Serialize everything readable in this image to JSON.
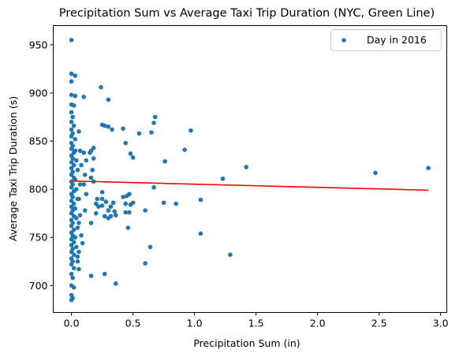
{
  "chart_data": {
    "type": "scatter",
    "title": "Precipitation Sum vs Average Taxi Trip Duration (NYC, Green Line)",
    "xlabel": "Precipitation Sum (in)",
    "ylabel": "Average Taxi Trip Duration (s)",
    "xlim": [
      -0.148,
      3.05
    ],
    "ylim": [
      672,
      970
    ],
    "xticks": [
      0.0,
      0.5,
      1.0,
      1.5,
      2.0,
      2.5,
      3.0
    ],
    "xtick_labels": [
      "0.0",
      "0.5",
      "1.0",
      "1.5",
      "2.0",
      "2.5",
      "3.0"
    ],
    "yticks": [
      700,
      750,
      800,
      850,
      900,
      950
    ],
    "ytick_labels": [
      "700",
      "750",
      "800",
      "850",
      "900",
      "950"
    ],
    "grid": false,
    "legend": {
      "position": "top-right",
      "entries": [
        "Day in 2016"
      ]
    },
    "colors": {
      "points": "#1f77b4",
      "fit_line": "#ff0000"
    },
    "fit_line": {
      "x": [
        0.0,
        2.9
      ],
      "y": [
        808.6,
        799.0
      ]
    },
    "series": [
      {
        "name": "Day in 2016",
        "points": [
          [
            0.0,
            955
          ],
          [
            0.0,
            920
          ],
          [
            0.03,
            918
          ],
          [
            0.0,
            912
          ],
          [
            0.0,
            898
          ],
          [
            0.03,
            897
          ],
          [
            0.1,
            896
          ],
          [
            0.0,
            888
          ],
          [
            0.02,
            887
          ],
          [
            0.0,
            880
          ],
          [
            0.01,
            875
          ],
          [
            0.0,
            870
          ],
          [
            0.02,
            866
          ],
          [
            0.0,
            862
          ],
          [
            0.01,
            858
          ],
          [
            0.0,
            855
          ],
          [
            0.03,
            852
          ],
          [
            0.0,
            848
          ],
          [
            0.01,
            845
          ],
          [
            0.0,
            842
          ],
          [
            0.02,
            838
          ],
          [
            0.0,
            835
          ],
          [
            0.01,
            832
          ],
          [
            0.0,
            828
          ],
          [
            0.02,
            825
          ],
          [
            0.0,
            822
          ],
          [
            0.01,
            818
          ],
          [
            0.0,
            815
          ],
          [
            0.02,
            812
          ],
          [
            0.0,
            808
          ],
          [
            0.01,
            805
          ],
          [
            0.0,
            802
          ],
          [
            0.02,
            798
          ],
          [
            0.0,
            795
          ],
          [
            0.01,
            792
          ],
          [
            0.0,
            788
          ],
          [
            0.02,
            785
          ],
          [
            0.0,
            782
          ],
          [
            0.01,
            778
          ],
          [
            0.0,
            775
          ],
          [
            0.02,
            772
          ],
          [
            0.0,
            768
          ],
          [
            0.01,
            765
          ],
          [
            0.0,
            762
          ],
          [
            0.02,
            758
          ],
          [
            0.0,
            755
          ],
          [
            0.01,
            752
          ],
          [
            0.0,
            748
          ],
          [
            0.02,
            745
          ],
          [
            0.0,
            742
          ],
          [
            0.01,
            738
          ],
          [
            0.0,
            735
          ],
          [
            0.02,
            732
          ],
          [
            0.0,
            728
          ],
          [
            0.01,
            725
          ],
          [
            0.0,
            722
          ],
          [
            0.02,
            718
          ],
          [
            0.0,
            712
          ],
          [
            0.01,
            708
          ],
          [
            0.0,
            700
          ],
          [
            0.02,
            698
          ],
          [
            0.0,
            690
          ],
          [
            0.01,
            687
          ],
          [
            0.0,
            685
          ],
          [
            0.03,
            840
          ],
          [
            0.04,
            830
          ],
          [
            0.05,
            820
          ],
          [
            0.03,
            810
          ],
          [
            0.04,
            800
          ],
          [
            0.05,
            790
          ],
          [
            0.03,
            780
          ],
          [
            0.04,
            770
          ],
          [
            0.05,
            760
          ],
          [
            0.03,
            750
          ],
          [
            0.04,
            740
          ],
          [
            0.05,
            730
          ],
          [
            0.06,
            860
          ],
          [
            0.07,
            840
          ],
          [
            0.08,
            825
          ],
          [
            0.07,
            805
          ],
          [
            0.06,
            790
          ],
          [
            0.07,
            773
          ],
          [
            0.06,
            765
          ],
          [
            0.08,
            752
          ],
          [
            0.09,
            744
          ],
          [
            0.06,
            735
          ],
          [
            0.05,
            725
          ],
          [
            0.06,
            717
          ],
          [
            0.1,
            838
          ],
          [
            0.12,
            830
          ],
          [
            0.11,
            815
          ],
          [
            0.1,
            805
          ],
          [
            0.12,
            795
          ],
          [
            0.11,
            778
          ],
          [
            0.15,
            838
          ],
          [
            0.16,
            840
          ],
          [
            0.18,
            843
          ],
          [
            0.18,
            832
          ],
          [
            0.17,
            820
          ],
          [
            0.16,
            812
          ],
          [
            0.18,
            808
          ],
          [
            0.2,
            785
          ],
          [
            0.22,
            782
          ],
          [
            0.21,
            790
          ],
          [
            0.2,
            775
          ],
          [
            0.16,
            765
          ],
          [
            0.16,
            710
          ],
          [
            0.24,
            906
          ],
          [
            0.25,
            867
          ],
          [
            0.27,
            866
          ],
          [
            0.3,
            865
          ],
          [
            0.3,
            893
          ],
          [
            0.33,
            862
          ],
          [
            0.25,
            797
          ],
          [
            0.25,
            790
          ],
          [
            0.28,
            787
          ],
          [
            0.25,
            783
          ],
          [
            0.3,
            778
          ],
          [
            0.32,
            782
          ],
          [
            0.34,
            786
          ],
          [
            0.27,
            772
          ],
          [
            0.3,
            770
          ],
          [
            0.32,
            772
          ],
          [
            0.35,
            777
          ],
          [
            0.36,
            773
          ],
          [
            0.36,
            702
          ],
          [
            0.27,
            712
          ],
          [
            0.42,
            863
          ],
          [
            0.44,
            848
          ],
          [
            0.48,
            837
          ],
          [
            0.5,
            833
          ],
          [
            0.55,
            858
          ],
          [
            0.42,
            792
          ],
          [
            0.45,
            793
          ],
          [
            0.47,
            795
          ],
          [
            0.44,
            785
          ],
          [
            0.5,
            786
          ],
          [
            0.44,
            776
          ],
          [
            0.47,
            776
          ],
          [
            0.46,
            760
          ],
          [
            0.48,
            784
          ],
          [
            0.6,
            778
          ],
          [
            0.6,
            723
          ],
          [
            0.64,
            740
          ],
          [
            0.65,
            859
          ],
          [
            0.67,
            869
          ],
          [
            0.68,
            875
          ],
          [
            0.67,
            802
          ],
          [
            0.75,
            786
          ],
          [
            0.76,
            829
          ],
          [
            0.85,
            785
          ],
          [
            0.92,
            841
          ],
          [
            0.97,
            861
          ],
          [
            1.05,
            789
          ],
          [
            1.05,
            754
          ],
          [
            1.23,
            811
          ],
          [
            1.29,
            732
          ],
          [
            1.42,
            823
          ],
          [
            2.47,
            817
          ],
          [
            2.9,
            822
          ]
        ]
      }
    ]
  }
}
